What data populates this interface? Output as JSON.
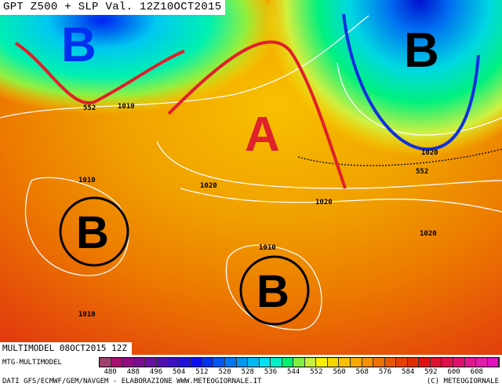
{
  "title": "GPT Z500 + SLP Val. 12Z10OCT2015",
  "run": "MULTIMODEL 08OCT2015 12Z",
  "model": "MTG-MULTIMODEL",
  "credit": "DATI GFS/ECMWF/GEM/NAVGEM - ELABORAZIONE WWW.METEOGIORNALE.IT",
  "copyright": "(C) METEOGIORNALE",
  "legend": {
    "ticks": [
      "480",
      "488",
      "496",
      "504",
      "512",
      "520",
      "528",
      "536",
      "544",
      "552",
      "560",
      "568",
      "576",
      "584",
      "592",
      "600",
      "608"
    ],
    "colors": [
      "#a04070",
      "#a8106e",
      "#900c80",
      "#7c0c90",
      "#6810a0",
      "#5010b0",
      "#3a10c0",
      "#2010d8",
      "#0a10f0",
      "#0030f0",
      "#0058f0",
      "#0078f0",
      "#0098f0",
      "#00b8f0",
      "#00e0f0",
      "#00f0c8",
      "#00f070",
      "#80f040",
      "#c8f040",
      "#f8f000",
      "#f8d800",
      "#f8c000",
      "#f8a800",
      "#f89000",
      "#f07000",
      "#e85800",
      "#e84000",
      "#e03000",
      "#e01010",
      "#e01030",
      "#e01050",
      "#e01070",
      "#e01890",
      "#e01ca8",
      "#e010c0"
    ]
  },
  "map": {
    "pressure_centers": [
      {
        "label": "B"
      },
      {
        "label": "B"
      },
      {
        "label": "A"
      },
      {
        "label": "B"
      },
      {
        "label": "B"
      }
    ],
    "isolines": [
      "552",
      "1010",
      "1010",
      "552",
      "1020",
      "1020",
      "1020",
      "1020",
      "1010",
      "1010",
      "1010"
    ]
  }
}
